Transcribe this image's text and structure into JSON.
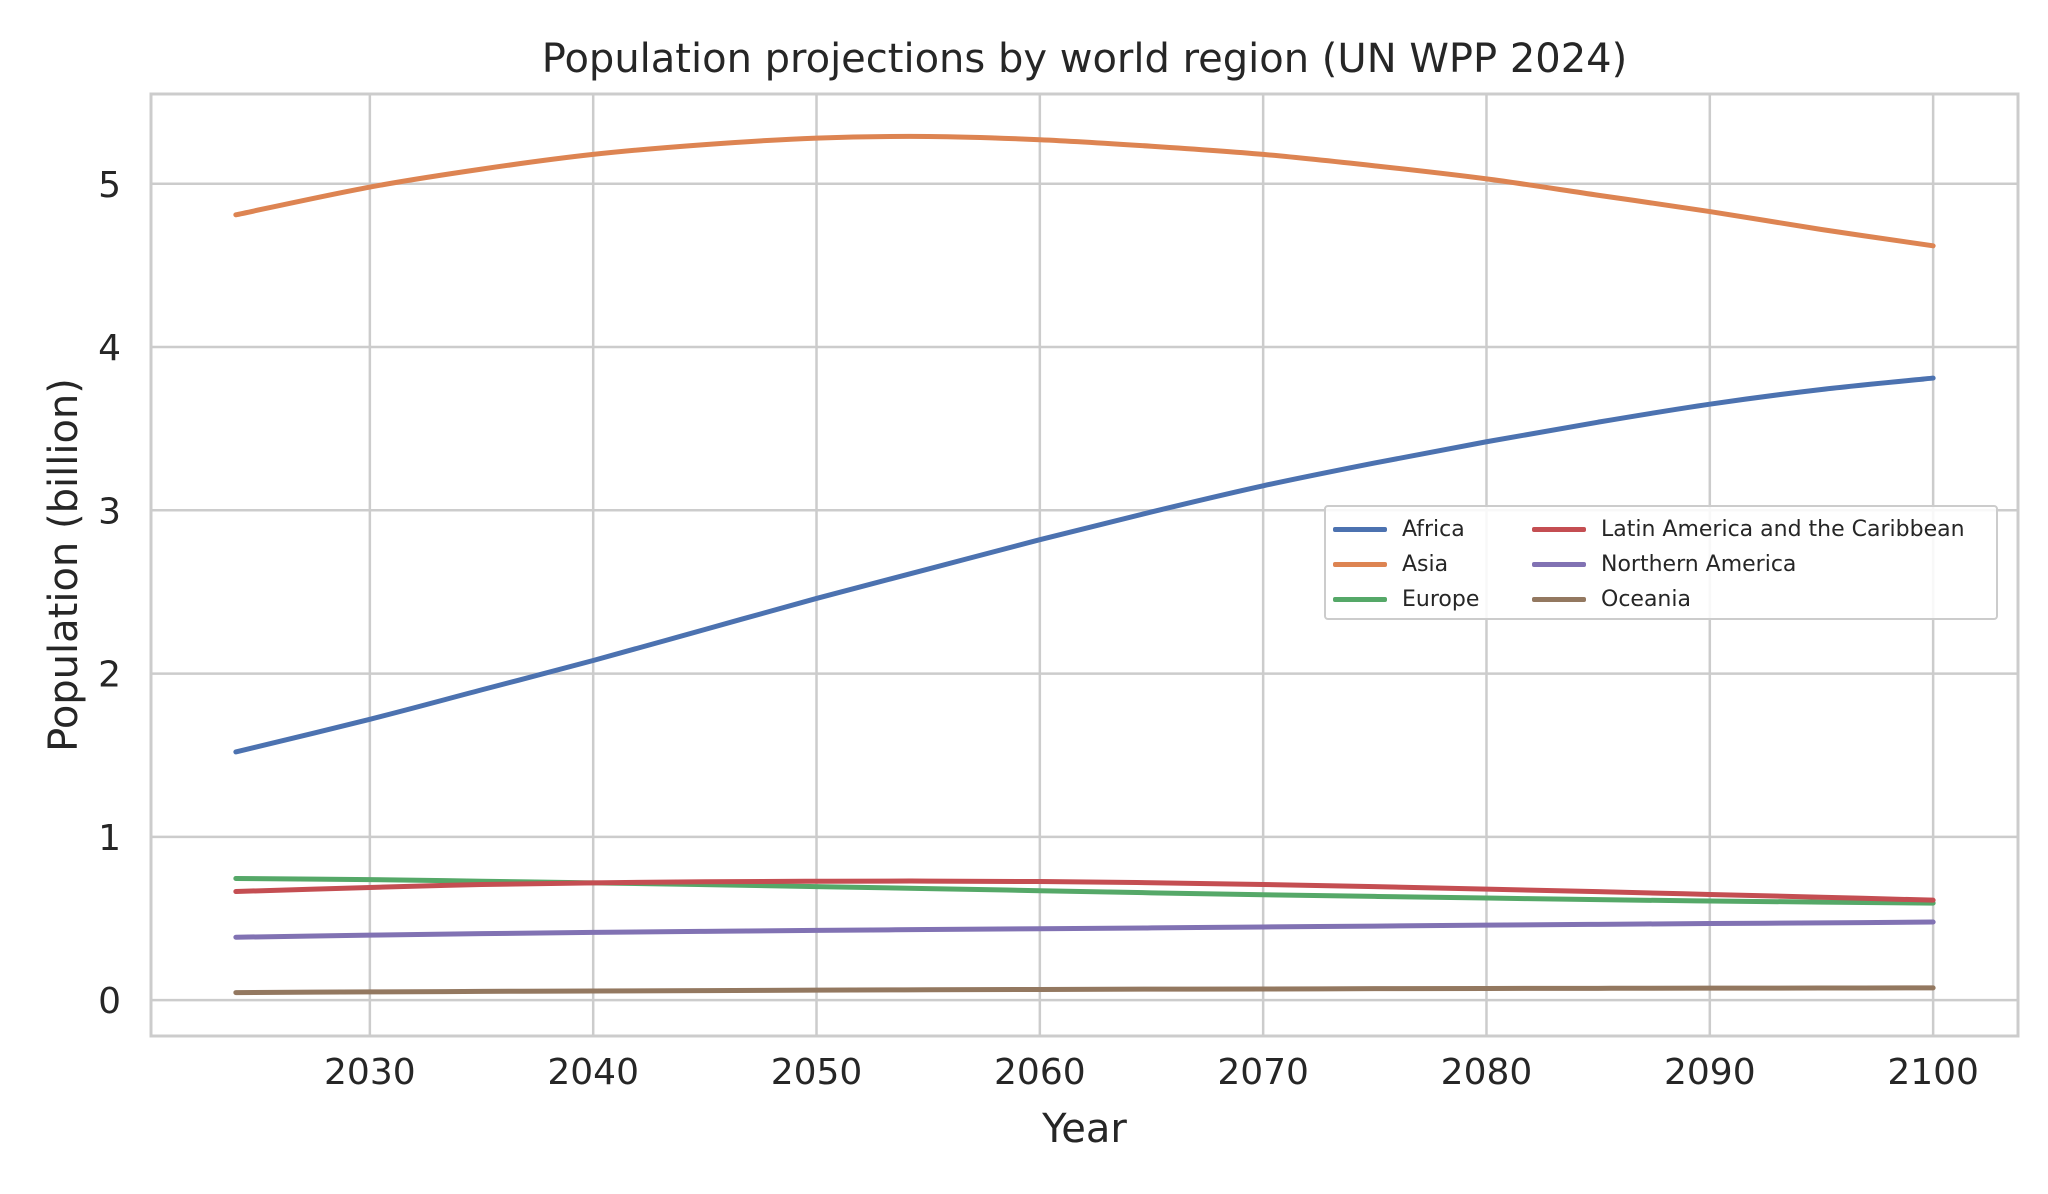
{
  "chart_data": {
    "type": "line",
    "title": "Population projections by world region (UN WPP 2024)",
    "xlabel": "Year",
    "ylabel": "Population (billion)",
    "xlim": [
      2020.2,
      2103.8
    ],
    "ylim": [
      -0.22,
      5.55
    ],
    "x_ticks": [
      2030,
      2040,
      2050,
      2060,
      2070,
      2080,
      2090,
      2100
    ],
    "y_ticks": [
      0,
      1,
      2,
      3,
      4,
      5
    ],
    "grid": true,
    "legend_position": "center-right",
    "legend_columns": 2,
    "x": [
      2024,
      2030,
      2035,
      2040,
      2045,
      2050,
      2055,
      2060,
      2065,
      2070,
      2075,
      2080,
      2085,
      2090,
      2095,
      2100
    ],
    "series": [
      {
        "name": "Africa",
        "color": "#4c72b0",
        "values": [
          1.52,
          1.72,
          1.9,
          2.08,
          2.27,
          2.46,
          2.64,
          2.82,
          2.99,
          3.15,
          3.29,
          3.42,
          3.54,
          3.65,
          3.74,
          3.81
        ]
      },
      {
        "name": "Asia",
        "color": "#dd8452",
        "values": [
          4.81,
          4.98,
          5.09,
          5.18,
          5.24,
          5.28,
          5.29,
          5.27,
          5.23,
          5.18,
          5.11,
          5.03,
          4.93,
          4.83,
          4.72,
          4.62
        ]
      },
      {
        "name": "Europe",
        "color": "#55a868",
        "values": [
          0.745,
          0.738,
          0.728,
          0.718,
          0.707,
          0.695,
          0.683,
          0.67,
          0.657,
          0.645,
          0.635,
          0.625,
          0.615,
          0.607,
          0.6,
          0.594
        ]
      },
      {
        "name": "Latin America and the Caribbean",
        "color": "#c44e52",
        "values": [
          0.665,
          0.69,
          0.708,
          0.718,
          0.725,
          0.728,
          0.729,
          0.726,
          0.719,
          0.708,
          0.695,
          0.68,
          0.664,
          0.647,
          0.63,
          0.612
        ]
      },
      {
        "name": "Northern America",
        "color": "#8172b3",
        "values": [
          0.385,
          0.398,
          0.407,
          0.415,
          0.421,
          0.427,
          0.432,
          0.437,
          0.442,
          0.448,
          0.453,
          0.459,
          0.464,
          0.469,
          0.473,
          0.478
        ]
      },
      {
        "name": "Oceania",
        "color": "#937860",
        "values": [
          0.046,
          0.05,
          0.053,
          0.056,
          0.058,
          0.061,
          0.063,
          0.065,
          0.067,
          0.068,
          0.07,
          0.071,
          0.072,
          0.073,
          0.074,
          0.075
        ]
      }
    ],
    "colors": {
      "grid": "#cccccc",
      "spine": "#cccccc",
      "text": "#262626",
      "background": "#ffffff"
    }
  }
}
